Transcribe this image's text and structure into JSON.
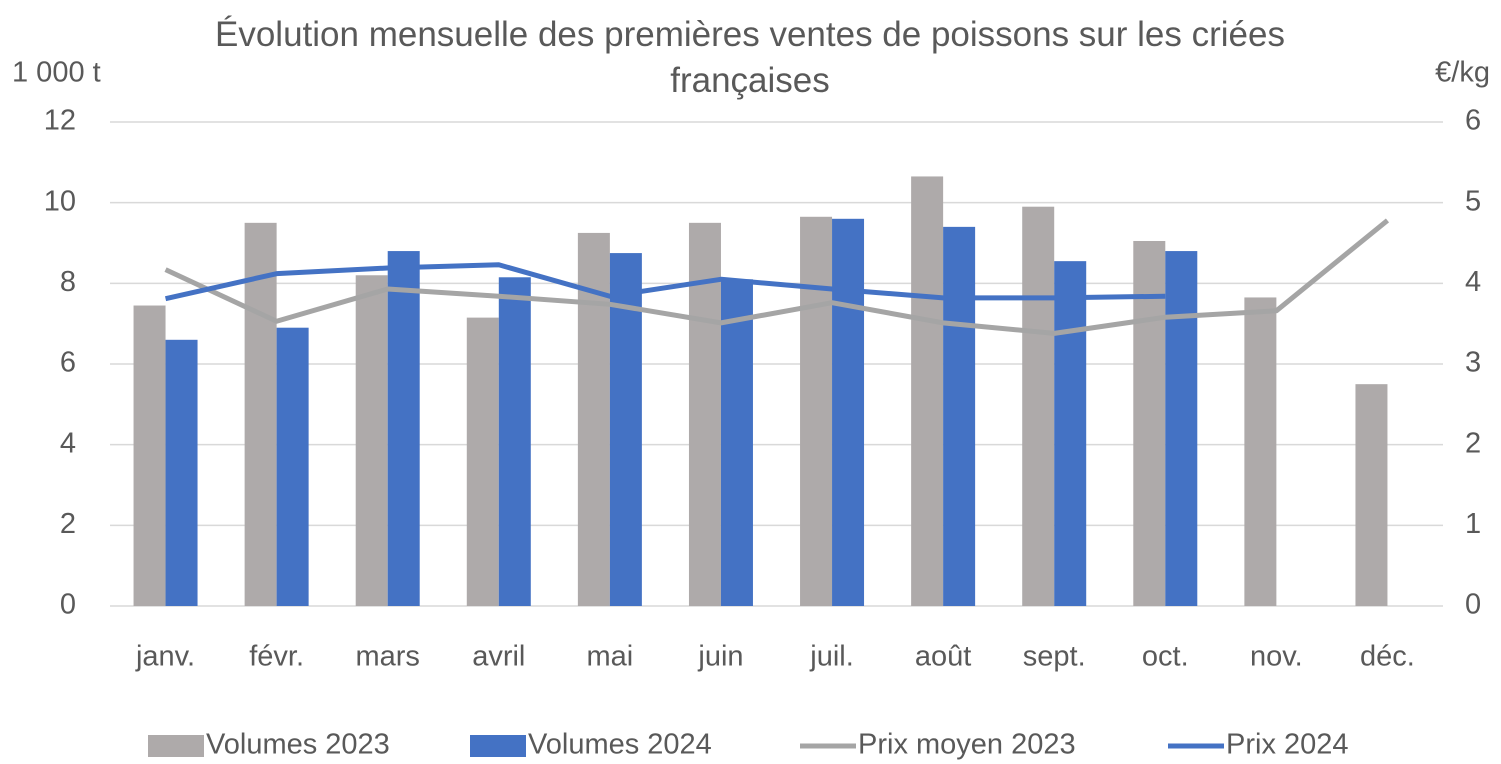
{
  "chart_data": {
    "type": "bar-line",
    "title": "Évolution mensuelle des premières ventes de poissons sur les criées françaises",
    "y_label": "1 000 t",
    "y2_label": "€/kg",
    "categories": [
      "janv.",
      "févr.",
      "mars",
      "avril",
      "mai",
      "juin",
      "juil.",
      "août",
      "sept.",
      "oct.",
      "nov.",
      "déc."
    ],
    "series": [
      {
        "name": "Volumes 2023",
        "type": "bar",
        "color": "#aeaaaa",
        "values": [
          7.45,
          9.5,
          8.2,
          7.15,
          9.25,
          9.5,
          9.65,
          10.65,
          9.9,
          9.05,
          7.65,
          5.5
        ]
      },
      {
        "name": "Volumes 2024",
        "type": "bar",
        "color": "#4472c4",
        "values": [
          6.6,
          6.9,
          8.8,
          8.15,
          8.75,
          8.1,
          9.6,
          9.4,
          8.55,
          8.8,
          null,
          null
        ]
      },
      {
        "name": "Prix moyen 2023",
        "type": "line",
        "axis": "y2",
        "color": "#a5a5a5",
        "values": [
          4.17,
          3.53,
          3.93,
          3.84,
          3.74,
          3.51,
          3.76,
          3.51,
          3.38,
          3.58,
          3.66,
          4.78
        ]
      },
      {
        "name": "Prix 2024",
        "type": "line",
        "axis": "y2",
        "color": "#4472c4",
        "values": [
          3.81,
          4.12,
          4.19,
          4.23,
          3.84,
          4.05,
          3.93,
          3.82,
          3.82,
          3.84,
          null,
          null
        ]
      }
    ],
    "ylim": [
      0,
      12
    ],
    "yticks": [
      0,
      2,
      4,
      6,
      8,
      10,
      12
    ],
    "y2lim": [
      0,
      6
    ],
    "y2ticks": [
      0,
      1,
      2,
      3,
      4,
      5,
      6
    ],
    "grid": true,
    "legend": "bottom"
  }
}
